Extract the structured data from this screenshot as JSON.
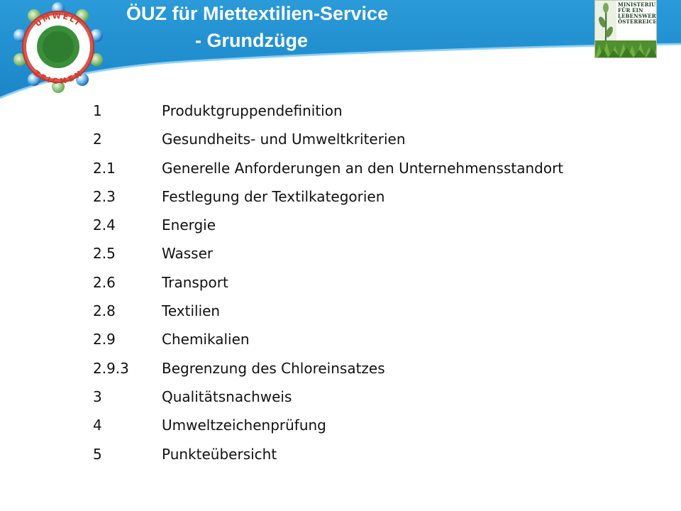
{
  "slide": {
    "title_line1": "ÖUZ für Miettextilien-Service",
    "title_line2": "- Grundzüge"
  },
  "colors": {
    "header_band": "#1b8dd0",
    "header_band_light": "#4aaee6",
    "title_text": "#ffffff",
    "body_text": "#111111"
  },
  "logo_left": {
    "icon": "umweltzeichen-logo",
    "text_top": "UMWELT",
    "text_bottom": "ZEICHEN"
  },
  "logo_right": {
    "icon": "ministry-logo",
    "lines": [
      "MINISTERIUM",
      "FÜR EIN",
      "LEBENSWERTES",
      "ÖSTERREICH"
    ]
  },
  "toc": {
    "items": [
      {
        "num": "1",
        "label": "Produktgruppendefinition"
      },
      {
        "num": "2",
        "label": "Gesundheits- und Umweltkriterien"
      },
      {
        "num": "2.1",
        "label": "Generelle Anforderungen an den Unternehmensstandort"
      },
      {
        "num": "2.3",
        "label": "Festlegung der Textilkategorien"
      },
      {
        "num": "2.4",
        "label": "Energie"
      },
      {
        "num": "2.5",
        "label": "Wasser"
      },
      {
        "num": "2.6",
        "label": "Transport"
      },
      {
        "num": "2.8",
        "label": "Textilien"
      },
      {
        "num": "2.9",
        "label": "Chemikalien"
      },
      {
        "num": "2.9.3",
        "label": "Begrenzung des Chloreinsatzes"
      },
      {
        "num": "3",
        "label": "Qualitätsnachweis"
      },
      {
        "num": "4",
        "label": "Umweltzeichenprüfung"
      },
      {
        "num": "5",
        "label": "Punkteübersicht"
      }
    ]
  }
}
